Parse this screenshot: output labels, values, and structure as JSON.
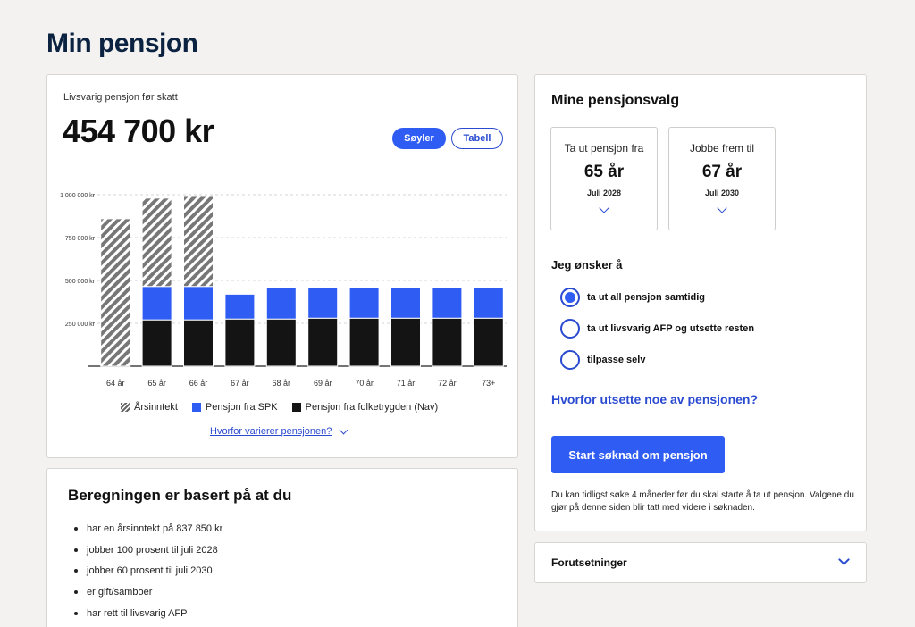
{
  "page": {
    "title": "Min pensjon"
  },
  "summary": {
    "subtitle": "Livsvarig pensjon før skatt",
    "amount": "454 700 kr",
    "view_toggle": {
      "active": "Søyler",
      "inactive": "Tabell"
    }
  },
  "chart_data": {
    "type": "bar",
    "stacked": true,
    "categories": [
      "64 år",
      "65 år",
      "66 år",
      "67 år",
      "68 år",
      "69 år",
      "70 år",
      "71 år",
      "72 år",
      "73+"
    ],
    "yticks": [
      "1 000 000 kr",
      "750 000 kr",
      "500 000 kr",
      "250 000 kr"
    ],
    "ytick_values": [
      1000000,
      750000,
      500000,
      250000
    ],
    "ylim": [
      0,
      1000000
    ],
    "grid": true,
    "series": [
      {
        "name": "Pensjon fra folketrygden (Nav)",
        "color": "#141414",
        "pattern": "solid",
        "values": [
          0,
          270000,
          270000,
          275000,
          275000,
          280000,
          280000,
          280000,
          280000,
          280000
        ]
      },
      {
        "name": "Pensjon fra SPK",
        "color": "#2f5cf2",
        "pattern": "solid",
        "values": [
          0,
          195000,
          195000,
          145000,
          185000,
          180000,
          180000,
          180000,
          180000,
          180000
        ]
      },
      {
        "name": "Årsinntekt",
        "color": "#777777",
        "pattern": "hatch",
        "values": [
          860000,
          515000,
          525000,
          0,
          0,
          0,
          0,
          0,
          0,
          0
        ]
      }
    ],
    "legend_order": [
      "Årsinntekt",
      "Pensjon fra SPK",
      "Pensjon fra folketrygden (Nav)"
    ],
    "legend_position": "bottom"
  },
  "chart_footer": {
    "why_link": "Hvorfor varierer pensjonen?"
  },
  "basis": {
    "title": "Beregningen er basert på at du",
    "items": [
      "har en årsinntekt på 837 850 kr",
      "jobber 100 prosent til juli 2028",
      "jobber 60 prosent til juli 2030",
      "er gift/samboer",
      "har rett til livsvarig AFP"
    ]
  },
  "choices": {
    "title": "Mine pensjonsvalg",
    "pension_from": {
      "label": "Ta ut pensjon fra",
      "age": "65 år",
      "date": "Juli 2028"
    },
    "work_until": {
      "label": "Jobbe frem til",
      "age": "67 år",
      "date": "Juli 2030"
    },
    "wish_title": "Jeg ønsker å",
    "options": [
      {
        "label": "ta ut all pensjon samtidig",
        "checked": true
      },
      {
        "label": "ta ut livsvarig AFP og utsette resten",
        "checked": false
      },
      {
        "label": "tilpasse selv",
        "checked": false
      }
    ],
    "delay_link": "Hvorfor utsette noe av pensjonen?",
    "start_button": "Start søknad om pensjon",
    "info": "Du kan tidligst søke 4 måneder før du skal starte å ta ut pensjon. Valgene du gjør på denne siden blir tatt med videre i søknaden."
  },
  "prerequisites": {
    "label": "Forutsetninger"
  },
  "icons": {
    "dropdown": "chevron-down-icon"
  }
}
